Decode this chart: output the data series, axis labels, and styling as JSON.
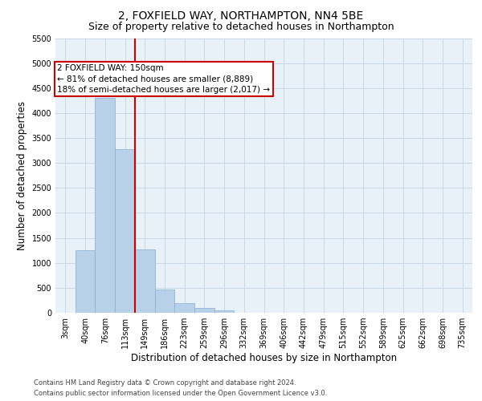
{
  "title_line1": "2, FOXFIELD WAY, NORTHAMPTON, NN4 5BE",
  "title_line2": "Size of property relative to detached houses in Northampton",
  "xlabel": "Distribution of detached houses by size in Northampton",
  "ylabel": "Number of detached properties",
  "footnote": "Contains HM Land Registry data © Crown copyright and database right 2024.\nContains public sector information licensed under the Open Government Licence v3.0.",
  "bar_labels": [
    "3sqm",
    "40sqm",
    "76sqm",
    "113sqm",
    "149sqm",
    "186sqm",
    "223sqm",
    "259sqm",
    "296sqm",
    "332sqm",
    "369sqm",
    "406sqm",
    "442sqm",
    "479sqm",
    "515sqm",
    "552sqm",
    "589sqm",
    "625sqm",
    "662sqm",
    "698sqm",
    "735sqm"
  ],
  "bar_values": [
    0,
    1250,
    4300,
    3280,
    1270,
    460,
    200,
    90,
    50,
    0,
    0,
    0,
    0,
    0,
    0,
    0,
    0,
    0,
    0,
    0,
    0
  ],
  "bar_color": "#b8d0e8",
  "bar_edge_color": "#88aed0",
  "vline_x_index": 4,
  "vline_color": "#cc0000",
  "annotation_text": "2 FOXFIELD WAY: 150sqm\n← 81% of detached houses are smaller (8,889)\n18% of semi-detached houses are larger (2,017) →",
  "annotation_box_facecolor": "white",
  "annotation_box_edgecolor": "#cc0000",
  "ylim_max": 5500,
  "yticks": [
    0,
    500,
    1000,
    1500,
    2000,
    2500,
    3000,
    3500,
    4000,
    4500,
    5000,
    5500
  ],
  "grid_color": "#c8d8e8",
  "plot_bg": "#e8f0f8",
  "title_fontsize": 10,
  "subtitle_fontsize": 9,
  "axis_label_fontsize": 8.5,
  "tick_fontsize": 7,
  "annotation_fontsize": 7.5,
  "footnote_fontsize": 6
}
